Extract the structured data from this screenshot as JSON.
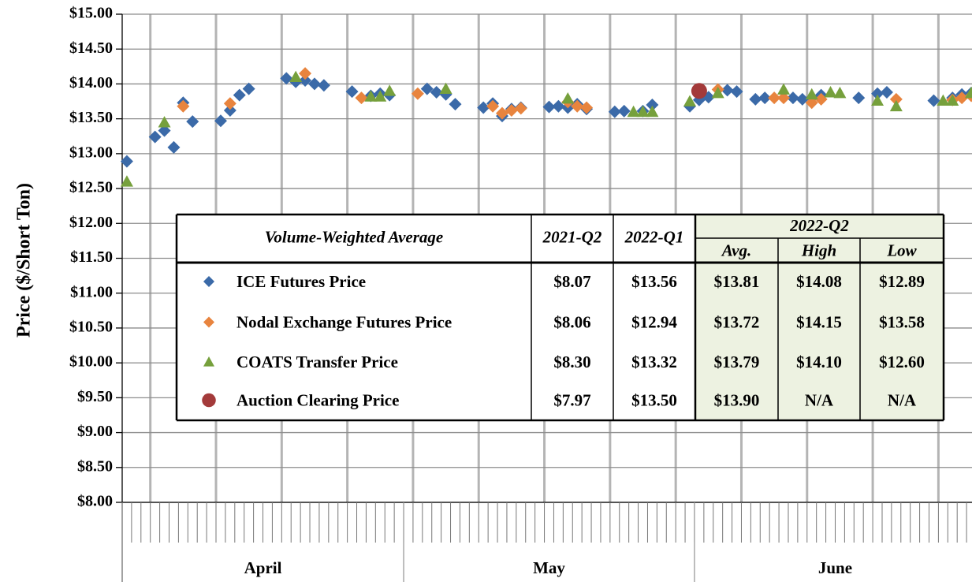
{
  "chart_data": {
    "type": "scatter",
    "y_label": "Price ($/Short Ton)",
    "ylim": [
      8,
      15
    ],
    "yticks": [
      {
        "value": 8,
        "label": "$8.00"
      },
      {
        "value": 8.5,
        "label": "$8.50"
      },
      {
        "value": 9,
        "label": "$9.00"
      },
      {
        "value": 9.5,
        "label": "$9.50"
      },
      {
        "value": 10,
        "label": "$10.00"
      },
      {
        "value": 10.5,
        "label": "$10.50"
      },
      {
        "value": 11,
        "label": "$11.00"
      },
      {
        "value": 11.5,
        "label": "$11.50"
      },
      {
        "value": 12,
        "label": "$12.00"
      },
      {
        "value": 12.5,
        "label": "$12.50"
      },
      {
        "value": 13,
        "label": "$13.00"
      },
      {
        "value": 13.5,
        "label": "$13.50"
      },
      {
        "value": 14,
        "label": "$14.00"
      },
      {
        "value": 14.5,
        "label": "$14.50"
      },
      {
        "value": 15,
        "label": "$15.00"
      }
    ],
    "xlim": [
      0.5,
      91.5
    ],
    "xticks": [
      3.5,
      10.5,
      17.5,
      24.5,
      31.5,
      38.5,
      45.5,
      52.5,
      59.5,
      66.5,
      73.5,
      80.5,
      87.5
    ],
    "x_groups": [
      {
        "label": "April",
        "days": 30
      },
      {
        "label": "May",
        "days": 31
      },
      {
        "label": "June",
        "days": 30
      }
    ],
    "grid": true,
    "series": [
      {
        "name": "ICE Futures Price",
        "color": "#3b6aa8",
        "marker": "diamond",
        "x": [
          1,
          4,
          5,
          6,
          7,
          8,
          11,
          12,
          13,
          14,
          18,
          19,
          20,
          21,
          22,
          25,
          27,
          28,
          29,
          33,
          34,
          35,
          36,
          39,
          40,
          41,
          42,
          43,
          46,
          47,
          48,
          49,
          50,
          53,
          54,
          56,
          57,
          61,
          62,
          63,
          65,
          66,
          68,
          69,
          72,
          73,
          74,
          75,
          79,
          81,
          82,
          87,
          89,
          90,
          91
        ],
        "values": [
          12.89,
          13.24,
          13.33,
          13.09,
          13.73,
          13.46,
          13.47,
          13.62,
          13.84,
          13.93,
          14.08,
          14.03,
          14.05,
          14.0,
          13.98,
          13.89,
          13.83,
          13.86,
          13.84,
          13.93,
          13.88,
          13.85,
          13.71,
          13.66,
          13.72,
          13.54,
          13.64,
          13.66,
          13.67,
          13.68,
          13.66,
          13.71,
          13.64,
          13.6,
          13.61,
          13.61,
          13.7,
          13.68,
          13.77,
          13.81,
          13.91,
          13.89,
          13.78,
          13.8,
          13.8,
          13.78,
          13.8,
          13.84,
          13.8,
          13.86,
          13.88,
          13.76,
          13.8,
          13.85,
          13.87
        ]
      },
      {
        "name": "Nodal Exchange Futures Price",
        "color": "#e8843e",
        "marker": "diamond",
        "x": [
          7,
          12,
          20,
          26,
          32,
          40,
          41,
          42,
          43,
          48,
          49,
          50,
          64,
          70,
          71,
          74,
          75,
          83,
          89,
          90,
          91
        ],
        "values": [
          13.68,
          13.72,
          14.15,
          13.8,
          13.86,
          13.68,
          13.58,
          13.62,
          13.65,
          13.74,
          13.68,
          13.66,
          13.92,
          13.8,
          13.8,
          13.73,
          13.78,
          13.78,
          13.77,
          13.8,
          13.83
        ]
      },
      {
        "name": "COATS Transfer Price",
        "color": "#76a03c",
        "marker": "triangle",
        "x": [
          1,
          5,
          19,
          27,
          28,
          29,
          35,
          48,
          55,
          56,
          57,
          61,
          64,
          71,
          74,
          76,
          77,
          81,
          83,
          88,
          89,
          91
        ],
        "values": [
          12.6,
          13.45,
          14.1,
          13.82,
          13.82,
          13.9,
          13.93,
          13.79,
          13.6,
          13.6,
          13.6,
          13.75,
          13.87,
          13.92,
          13.85,
          13.88,
          13.87,
          13.76,
          13.68,
          13.76,
          13.76,
          13.87
        ]
      },
      {
        "name": "Auction Clearing Price",
        "color": "#a33a3a",
        "marker": "circle",
        "x": [
          62
        ],
        "values": [
          13.9
        ]
      }
    ]
  },
  "table": {
    "columns": [
      "Volume-Weighted Average",
      "2021-Q2",
      "2022-Q1"
    ],
    "group": "2022-Q2",
    "group_columns": [
      "Avg.",
      "High",
      "Low"
    ],
    "rows": [
      [
        "$8.07",
        "$13.56",
        "$13.81",
        "$14.08",
        "$12.89"
      ],
      [
        "$8.06",
        "$12.94",
        "$13.72",
        "$14.15",
        "$13.58"
      ],
      [
        "$8.30",
        "$13.32",
        "$13.79",
        "$14.10",
        "$12.60"
      ],
      [
        "$7.97",
        "$13.50",
        "$13.90",
        "N/A",
        "N/A"
      ]
    ]
  }
}
